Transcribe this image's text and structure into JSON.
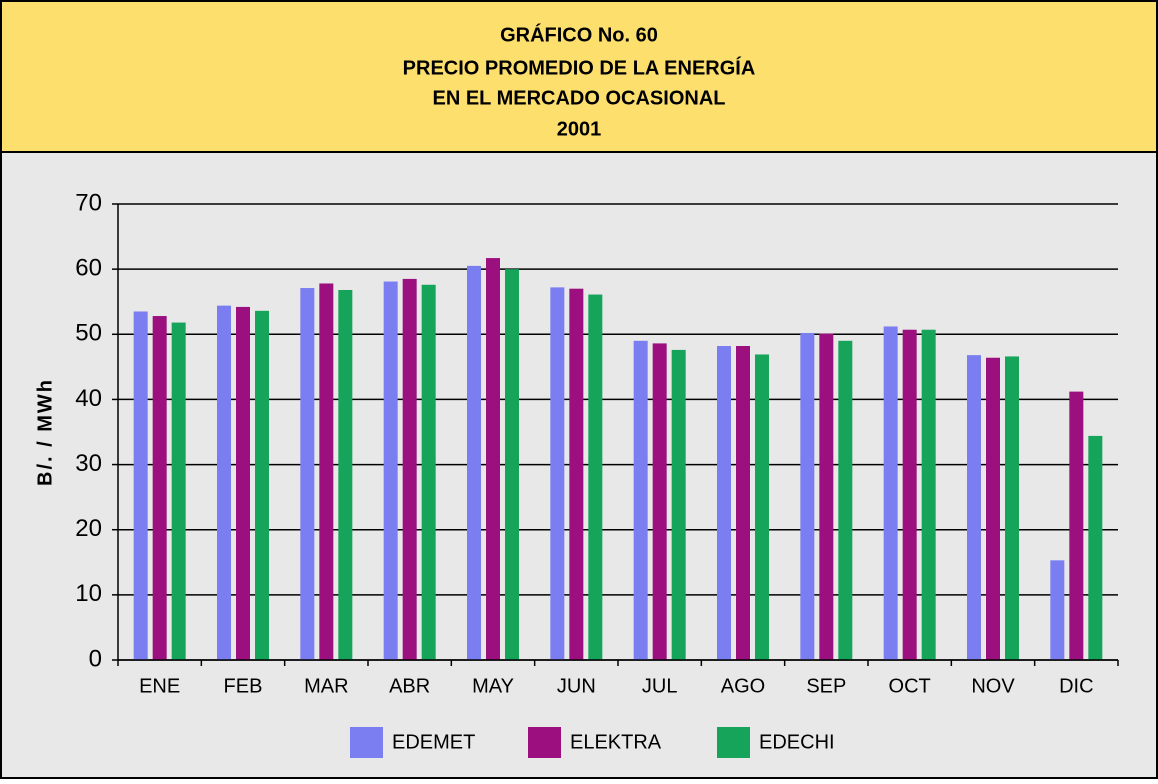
{
  "chart_data": {
    "type": "bar",
    "title": [
      "GRÁFICO No. 60",
      "PRECIO PROMEDIO DE LA ENERGÍA",
      "EN EL MERCADO OCASIONAL",
      "2001"
    ],
    "y_label": "B/. / MWh",
    "categories": [
      "ENE",
      "FEB",
      "MAR",
      "ABR",
      "MAY",
      "JUN",
      "JUL",
      "AGO",
      "SEP",
      "OCT",
      "NOV",
      "DIC"
    ],
    "series": [
      {
        "name": "EDEMET",
        "color": "#7b7ef0",
        "values": [
          53.5,
          54.4,
          57.1,
          58.1,
          60.5,
          57.2,
          49.0,
          48.2,
          50.2,
          51.2,
          46.8,
          15.3
        ]
      },
      {
        "name": "ELEKTRA",
        "color": "#9b0f7f",
        "values": [
          52.8,
          54.2,
          57.8,
          58.5,
          61.7,
          57.0,
          48.6,
          48.2,
          50.1,
          50.7,
          46.4,
          41.2
        ]
      },
      {
        "name": "EDECHI",
        "color": "#16a35a",
        "values": [
          51.8,
          53.6,
          56.8,
          57.6,
          60.0,
          56.1,
          47.6,
          46.9,
          49.0,
          50.7,
          46.6,
          34.4
        ]
      }
    ],
    "ylim": [
      0,
      70
    ],
    "yticks": [
      0,
      10,
      20,
      30,
      40,
      50,
      60,
      70
    ],
    "grid": true,
    "legend": "bottom"
  }
}
